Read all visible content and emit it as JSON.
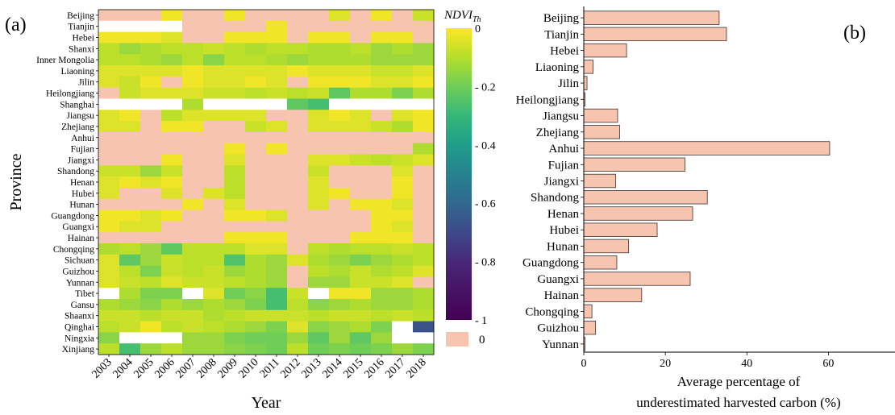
{
  "panel_a": {
    "label": "(a)",
    "xlabel": "Year",
    "ylabel": "Province",
    "colorbar_title": "NDVI",
    "colorbar_title_sub": "Th",
    "colorbar_ticks": [
      "0",
      "- 0.2",
      "- 0.4",
      "- 0.6",
      "- 0.8",
      "- 1"
    ],
    "zero_legend_label": "0",
    "colors": {
      "zero_patch": "#f7c4b0",
      "missing": "#ffffff"
    }
  },
  "panel_b": {
    "label": "(b)",
    "xlabel_line1": "Average percentage of",
    "xlabel_line2": "underestimated harvested carbon (%)",
    "bar_color": "#f7c4b0"
  },
  "chart_data": [
    {
      "type": "heatmap",
      "title": "",
      "xlabel": "Year",
      "ylabel": "Province",
      "colorbar_label": "NDVI_Th",
      "colorbar_range": [
        -1,
        0
      ],
      "zero_category_label": "0",
      "x": [
        "2003",
        "2004",
        "2005",
        "2006",
        "2007",
        "2008",
        "2009",
        "2010",
        "2011",
        "2012",
        "2013",
        "2014",
        "2015",
        "2016",
        "2017",
        "2018"
      ],
      "y": [
        "Beijing",
        "Tianjin",
        "Hebei",
        "Shanxi",
        "Inner Mongolia",
        "Liaoning",
        "Jilin",
        "Heilongjiang",
        "Shanghai",
        "Jiangsu",
        "Zhejiang",
        "Anhui",
        "Fujian",
        "Jiangxi",
        "Shandong",
        "Henan",
        "Hubei",
        "Hunan",
        "Guangdong",
        "Guangxi",
        "Hainan",
        "Chongqing",
        "Sichuan",
        "Guizhou",
        "Yunnan",
        "Tibet",
        "Gansu",
        "Shaanxi",
        "Qinghai",
        "Ningxia",
        "Xinjiang"
      ],
      "values": [
        [
          0,
          0,
          0,
          -0.02,
          0,
          0,
          -0.02,
          0,
          0,
          0,
          0,
          -0.05,
          0,
          -0.02,
          0,
          -0.08
        ],
        [
          null,
          null,
          null,
          null,
          0,
          0,
          0,
          0,
          -0.02,
          0,
          0,
          0,
          0,
          0,
          0,
          0
        ],
        [
          -0.02,
          -0.02,
          -0.02,
          -0.05,
          0,
          0,
          -0.02,
          -0.02,
          -0.02,
          0,
          -0.02,
          -0.02,
          0,
          -0.02,
          -0.02,
          0
        ],
        [
          -0.1,
          -0.15,
          -0.12,
          -0.1,
          -0.1,
          -0.08,
          -0.1,
          -0.12,
          -0.1,
          -0.1,
          -0.12,
          -0.12,
          -0.1,
          -0.15,
          -0.12,
          -0.15
        ],
        [
          -0.1,
          -0.1,
          -0.12,
          -0.15,
          -0.1,
          -0.18,
          -0.1,
          -0.1,
          -0.12,
          -0.15,
          -0.12,
          -0.12,
          -0.12,
          -0.15,
          -0.15,
          -0.15
        ],
        [
          -0.05,
          -0.05,
          -0.05,
          -0.05,
          -0.02,
          -0.05,
          -0.05,
          -0.05,
          -0.05,
          -0.02,
          -0.05,
          -0.05,
          -0.05,
          -0.08,
          -0.08,
          -0.05
        ],
        [
          -0.05,
          -0.08,
          -0.02,
          0,
          -0.02,
          -0.05,
          -0.05,
          -0.02,
          -0.05,
          0,
          -0.02,
          -0.02,
          -0.02,
          -0.05,
          -0.05,
          -0.02
        ],
        [
          0,
          -0.08,
          -0.05,
          -0.05,
          -0.05,
          -0.08,
          -0.08,
          -0.1,
          -0.08,
          -0.1,
          -0.08,
          -0.25,
          -0.12,
          -0.12,
          -0.2,
          -0.12
        ],
        [
          null,
          null,
          null,
          null,
          -0.12,
          null,
          null,
          null,
          null,
          -0.25,
          -0.3,
          null,
          null,
          null,
          null,
          null
        ],
        [
          -0.05,
          -0.02,
          0,
          -0.1,
          -0.05,
          -0.05,
          -0.05,
          -0.05,
          0,
          0,
          -0.05,
          -0.02,
          -0.05,
          0,
          -0.05,
          -0.02
        ],
        [
          -0.05,
          -0.05,
          0,
          -0.02,
          -0.02,
          0,
          0,
          -0.08,
          -0.05,
          0,
          -0.05,
          -0.05,
          -0.05,
          -0.08,
          -0.12,
          -0.02
        ],
        [
          0,
          0,
          0,
          0,
          0,
          0,
          0,
          0,
          0,
          0,
          0,
          0,
          0,
          0,
          0,
          0
        ],
        [
          0,
          0,
          0,
          0,
          0,
          0,
          -0.02,
          0,
          -0.02,
          0,
          0,
          0,
          0,
          0,
          0,
          -0.12
        ],
        [
          0,
          0,
          0,
          -0.02,
          0,
          0,
          -0.05,
          0,
          0,
          0,
          -0.05,
          -0.05,
          -0.08,
          -0.1,
          -0.08,
          -0.05
        ],
        [
          -0.08,
          -0.08,
          -0.15,
          -0.08,
          0,
          0,
          -0.1,
          0,
          0,
          0,
          -0.08,
          0,
          0,
          0,
          -0.05,
          0
        ],
        [
          -0.05,
          -0.02,
          -0.05,
          -0.02,
          0,
          0,
          -0.1,
          0,
          0,
          0,
          -0.05,
          0,
          0,
          0,
          -0.02,
          0
        ],
        [
          -0.05,
          0,
          0,
          -0.05,
          0,
          -0.05,
          -0.1,
          0,
          0,
          0,
          -0.05,
          -0.02,
          0,
          0,
          -0.02,
          0
        ],
        [
          0,
          0,
          0,
          0,
          -0.02,
          0,
          -0.05,
          0,
          0,
          0,
          -0.05,
          0,
          -0.02,
          -0.02,
          -0.05,
          0
        ],
        [
          -0.02,
          -0.02,
          -0.05,
          -0.02,
          0,
          0,
          -0.02,
          -0.02,
          -0.05,
          0,
          0,
          0,
          0,
          -0.02,
          -0.02,
          0
        ],
        [
          -0.02,
          -0.05,
          -0.05,
          0,
          0,
          0,
          0,
          0,
          0,
          0,
          0,
          0,
          0,
          -0.02,
          -0.05,
          0
        ],
        [
          0,
          0,
          0,
          0,
          0,
          0,
          -0.02,
          -0.02,
          -0.02,
          0,
          0,
          0,
          -0.02,
          -0.02,
          -0.02,
          0
        ],
        [
          -0.12,
          -0.1,
          -0.15,
          -0.25,
          -0.1,
          -0.1,
          -0.1,
          -0.05,
          -0.05,
          0,
          -0.1,
          -0.12,
          -0.1,
          -0.1,
          -0.08,
          -0.1
        ],
        [
          -0.05,
          -0.25,
          -0.15,
          -0.08,
          -0.1,
          -0.1,
          -0.28,
          -0.12,
          -0.15,
          -0.05,
          -0.12,
          -0.15,
          -0.2,
          -0.15,
          -0.12,
          -0.1
        ],
        [
          -0.05,
          -0.1,
          -0.2,
          -0.08,
          -0.1,
          -0.08,
          -0.15,
          -0.12,
          -0.15,
          0,
          -0.1,
          -0.12,
          -0.08,
          -0.12,
          -0.1,
          -0.05
        ],
        [
          -0.05,
          -0.08,
          -0.1,
          -0.05,
          -0.08,
          -0.08,
          -0.1,
          -0.12,
          -0.15,
          0,
          -0.15,
          -0.15,
          -0.08,
          -0.08,
          -0.05,
          0
        ],
        [
          null,
          -0.12,
          -0.2,
          -0.2,
          null,
          -0.05,
          -0.22,
          -0.18,
          -0.3,
          -0.08,
          null,
          -0.02,
          -0.02,
          -0.15,
          -0.15,
          -0.12
        ],
        [
          -0.12,
          -0.15,
          -0.18,
          -0.12,
          -0.15,
          -0.12,
          -0.15,
          -0.2,
          -0.3,
          -0.1,
          -0.18,
          -0.15,
          -0.12,
          -0.15,
          -0.15,
          -0.12
        ],
        [
          -0.08,
          -0.08,
          -0.1,
          -0.08,
          -0.08,
          -0.12,
          -0.1,
          -0.08,
          -0.08,
          -0.08,
          -0.1,
          -0.08,
          -0.08,
          -0.1,
          -0.08,
          -0.1
        ],
        [
          -0.1,
          -0.08,
          -0.02,
          -0.1,
          -0.08,
          -0.1,
          -0.12,
          -0.15,
          -0.2,
          -0.05,
          -0.18,
          -0.15,
          -0.12,
          -0.2,
          null,
          -0.75
        ],
        [
          -0.18,
          null,
          null,
          null,
          -0.15,
          -0.15,
          -0.2,
          -0.22,
          -0.22,
          -0.15,
          -0.25,
          -0.15,
          -0.25,
          -0.15,
          null,
          null
        ],
        [
          -0.1,
          -0.3,
          -0.15,
          -0.1,
          -0.15,
          -0.15,
          -0.18,
          -0.2,
          -0.22,
          -0.1,
          -0.22,
          -0.2,
          -0.22,
          -0.2,
          -0.15,
          -0.2
        ]
      ]
    },
    {
      "type": "bar",
      "orientation": "horizontal",
      "title": "",
      "xlabel": "Average percentage of underestimated harvested carbon (%)",
      "ylabel": "",
      "categories": [
        "Beijing",
        "Tianjin",
        "Hebei",
        "Liaoning",
        "Jilin",
        "Heilongjiang",
        "Jiangsu",
        "Zhejiang",
        "Anhui",
        "Fujian",
        "Jiangxi",
        "Shandong",
        "Henan",
        "Hubei",
        "Hunan",
        "Guangdong",
        "Guangxi",
        "Hainan",
        "Chongqing",
        "Guizhou",
        "Yunnan"
      ],
      "values": [
        33.2,
        35.0,
        10.5,
        2.3,
        0.8,
        0.3,
        8.3,
        8.8,
        60.3,
        24.8,
        7.8,
        30.3,
        26.7,
        18.0,
        11.0,
        8.1,
        26.1,
        14.2,
        2.0,
        2.9,
        0.3
      ],
      "xlim": [
        0,
        70
      ],
      "xticks": [
        "0",
        "20",
        "40",
        "60"
      ]
    }
  ]
}
